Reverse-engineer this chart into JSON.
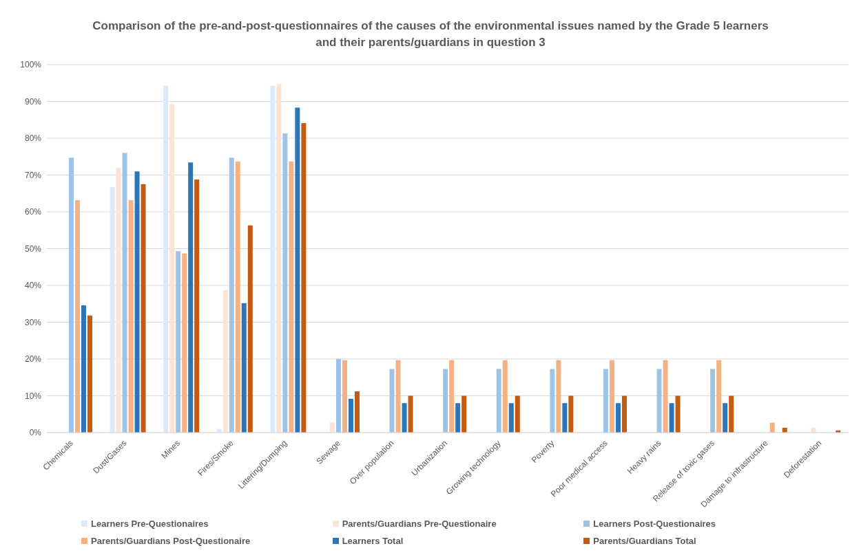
{
  "chart_data": {
    "type": "bar",
    "title": "Comparison of the pre-and-post-questionnaires of the causes of the environmental issues named by the Grade 5 learners and their parents/guardians in question 3",
    "categories": [
      "Chemicals",
      "Dust/Gases",
      "Mines",
      "Fires/Smoke",
      "Littering/Dumping",
      "Sewage",
      "Over population",
      "Urbanization",
      "Growing technology",
      "Poverty",
      "Poor medical access",
      "Heavy rains",
      "Release of toxic gases",
      "Damage to infrastructure",
      "Deforestation"
    ],
    "series": [
      {
        "name": "Learners Pre-Questionaires",
        "color": "#dde9f6",
        "values": [
          0,
          66.7,
          94.3,
          1,
          94.3,
          0,
          0,
          0,
          0,
          0,
          0,
          0,
          0,
          0,
          0
        ]
      },
      {
        "name": "Parents/Guardians Pre-Questionaire",
        "color": "#fbe3d5",
        "values": [
          0,
          72,
          89.3,
          38.7,
          94.7,
          2.7,
          0,
          0,
          0,
          0,
          0,
          0,
          0,
          0,
          1.3
        ]
      },
      {
        "name": "Learners Post-Questionaires",
        "color": "#9dc3e6",
        "values": [
          74.7,
          76,
          49.3,
          74.7,
          81.3,
          20,
          17.3,
          17.3,
          17.3,
          17.3,
          17.3,
          17.3,
          17.3,
          0,
          0
        ]
      },
      {
        "name": "Parents/Guardians Post-Questionaire",
        "color": "#f4b183",
        "values": [
          63.2,
          63.2,
          48.7,
          73.7,
          73.7,
          19.7,
          19.7,
          19.7,
          19.7,
          19.7,
          19.7,
          19.7,
          19.7,
          2.7,
          0
        ]
      },
      {
        "name": "Learners Total",
        "color": "#2e75b6",
        "values": [
          34.6,
          71,
          73.4,
          35.2,
          88.3,
          9.2,
          8,
          8,
          8,
          8,
          8,
          8,
          8,
          0,
          0
        ]
      },
      {
        "name": "Parents/Guardians Total",
        "color": "#c55a11",
        "values": [
          31.8,
          67.5,
          68.8,
          56.3,
          84.1,
          11.2,
          10,
          10,
          10,
          10,
          10,
          10,
          10,
          1.3,
          0.6
        ]
      }
    ],
    "ylim": [
      0,
      100
    ],
    "yticks": [
      {
        "value": 0,
        "label": "0%"
      },
      {
        "value": 10,
        "label": "10%"
      },
      {
        "value": 20,
        "label": "20%"
      },
      {
        "value": 30,
        "label": "30%"
      },
      {
        "value": 40,
        "label": "40%"
      },
      {
        "value": 50,
        "label": "50%"
      },
      {
        "value": 60,
        "label": "60%"
      },
      {
        "value": 70,
        "label": "70%"
      },
      {
        "value": 80,
        "label": "80%"
      },
      {
        "value": 90,
        "label": "90%"
      },
      {
        "value": 100,
        "label": "100%"
      }
    ],
    "grid": "y",
    "legend": "bottom"
  }
}
